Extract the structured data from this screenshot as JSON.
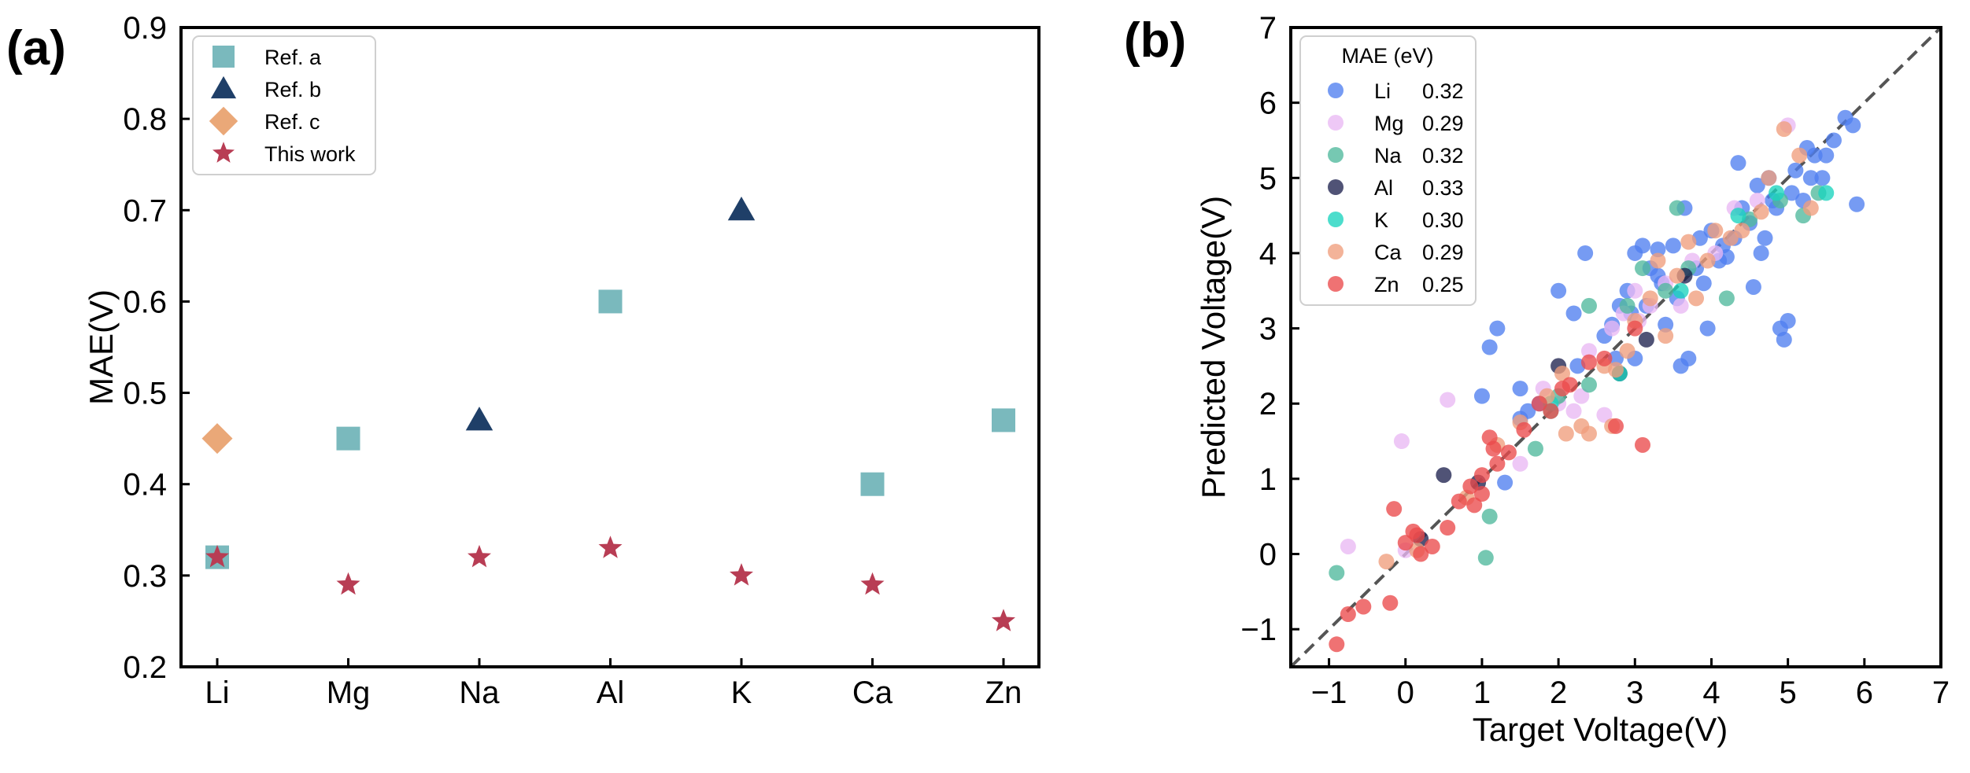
{
  "chart_data": [
    {
      "type": "scatter",
      "panel_label": "(a)",
      "categories": [
        "Li",
        "Mg",
        "Na",
        "Al",
        "K",
        "Ca",
        "Zn"
      ],
      "ylabel": "MAE(V)",
      "xlabel": "",
      "ylim": [
        0.2,
        0.9
      ],
      "yticks": [
        0.2,
        0.3,
        0.4,
        0.5,
        0.6,
        0.7,
        0.8,
        0.9
      ],
      "ytick_labels": [
        "0.2",
        "0.3",
        "0.4",
        "0.5",
        "0.6",
        "0.7",
        "0.8",
        "0.9"
      ],
      "legend_position": "top-left",
      "series": [
        {
          "name": "Ref. a",
          "marker": "square",
          "color": "#7ab9bd",
          "points": [
            {
              "category": "Li",
              "value": 0.32
            },
            {
              "category": "Mg",
              "value": 0.45
            },
            {
              "category": "Al",
              "value": 0.6
            },
            {
              "category": "Ca",
              "value": 0.4
            },
            {
              "category": "Zn",
              "value": 0.47
            }
          ]
        },
        {
          "name": "Ref. b",
          "marker": "triangle",
          "color": "#1f3f68",
          "points": [
            {
              "category": "Na",
              "value": 0.47
            },
            {
              "category": "K",
              "value": 0.7
            }
          ]
        },
        {
          "name": "Ref. c",
          "marker": "diamond",
          "color": "#eaa878",
          "points": [
            {
              "category": "Li",
              "value": 0.45
            }
          ]
        },
        {
          "name": "This work",
          "marker": "star",
          "color": "#b83d54",
          "points": [
            {
              "category": "Li",
              "value": 0.32
            },
            {
              "category": "Mg",
              "value": 0.29
            },
            {
              "category": "Na",
              "value": 0.32
            },
            {
              "category": "Al",
              "value": 0.33
            },
            {
              "category": "K",
              "value": 0.3
            },
            {
              "category": "Ca",
              "value": 0.29
            },
            {
              "category": "Zn",
              "value": 0.25
            }
          ]
        }
      ]
    },
    {
      "type": "scatter",
      "panel_label": "(b)",
      "xlabel": "Target Voltage(V)",
      "ylabel": "Predicted Voltage(V)",
      "xlim": [
        -1.5,
        7
      ],
      "ylim": [
        -1.5,
        7
      ],
      "xticks": [
        -1,
        0,
        1,
        2,
        3,
        4,
        5,
        6,
        7
      ],
      "xtick_labels": [
        "−1",
        "0",
        "1",
        "2",
        "3",
        "4",
        "5",
        "6",
        "7"
      ],
      "yticks": [
        -1,
        0,
        1,
        2,
        3,
        4,
        5,
        6,
        7
      ],
      "ytick_labels": [
        "−1",
        "0",
        "1",
        "2",
        "3",
        "4",
        "5",
        "6",
        "7"
      ],
      "reference_line": "y = x (dashed)",
      "legend_title": "MAE (eV)",
      "legend_position": "top-left",
      "series": [
        {
          "name": "Li",
          "mae": "0.32",
          "color": "#4f7ff0",
          "points": [
            [
              1.2,
              3.0
            ],
            [
              1.1,
              2.75
            ],
            [
              1.3,
              0.95
            ],
            [
              1.0,
              2.1
            ],
            [
              1.5,
              2.2
            ],
            [
              1.5,
              1.8
            ],
            [
              1.6,
              1.9
            ],
            [
              1.75,
              2.0
            ],
            [
              2.0,
              3.5
            ],
            [
              2.2,
              3.2
            ],
            [
              2.25,
              2.5
            ],
            [
              2.35,
              4.0
            ],
            [
              2.6,
              2.9
            ],
            [
              2.7,
              3.05
            ],
            [
              2.75,
              2.6
            ],
            [
              2.8,
              3.3
            ],
            [
              2.9,
              3.5
            ],
            [
              3.0,
              4.0
            ],
            [
              3.0,
              2.6
            ],
            [
              3.1,
              4.1
            ],
            [
              3.15,
              3.3
            ],
            [
              3.2,
              3.8
            ],
            [
              3.3,
              4.05
            ],
            [
              3.35,
              3.6
            ],
            [
              3.4,
              3.05
            ],
            [
              3.5,
              4.1
            ],
            [
              3.55,
              3.4
            ],
            [
              3.6,
              2.5
            ],
            [
              3.65,
              4.6
            ],
            [
              3.7,
              2.6
            ],
            [
              3.8,
              3.8
            ],
            [
              3.85,
              4.2
            ],
            [
              3.9,
              3.6
            ],
            [
              3.95,
              3.0
            ],
            [
              4.0,
              4.3
            ],
            [
              4.1,
              3.9
            ],
            [
              4.15,
              4.1
            ],
            [
              4.2,
              3.95
            ],
            [
              4.3,
              4.2
            ],
            [
              4.35,
              5.2
            ],
            [
              4.4,
              4.6
            ],
            [
              4.5,
              4.4
            ],
            [
              4.55,
              3.55
            ],
            [
              4.6,
              4.9
            ],
            [
              4.65,
              4.0
            ],
            [
              4.7,
              4.2
            ],
            [
              4.75,
              5.0
            ],
            [
              4.8,
              4.7
            ],
            [
              4.85,
              4.6
            ],
            [
              4.9,
              3.0
            ],
            [
              4.95,
              2.85
            ],
            [
              5.0,
              3.1
            ],
            [
              5.05,
              4.8
            ],
            [
              5.1,
              5.1
            ],
            [
              5.2,
              4.7
            ],
            [
              5.25,
              5.4
            ],
            [
              5.3,
              5.0
            ],
            [
              5.35,
              5.3
            ],
            [
              5.45,
              5.0
            ],
            [
              5.5,
              5.3
            ],
            [
              5.6,
              5.5
            ],
            [
              5.75,
              5.8
            ],
            [
              5.85,
              5.7
            ],
            [
              5.9,
              4.65
            ],
            [
              3.3,
              3.7
            ],
            [
              2.95,
              3.2
            ]
          ]
        },
        {
          "name": "Mg",
          "mae": "0.29",
          "color": "#e9b8f3",
          "points": [
            [
              -0.75,
              0.1
            ],
            [
              -0.05,
              1.5
            ],
            [
              0.55,
              2.05
            ],
            [
              1.5,
              1.2
            ],
            [
              2.0,
              2.0
            ],
            [
              2.2,
              1.9
            ],
            [
              2.4,
              2.7
            ],
            [
              2.6,
              1.85
            ],
            [
              2.7,
              3.0
            ],
            [
              2.85,
              3.2
            ],
            [
              3.0,
              3.5
            ],
            [
              3.05,
              3.1
            ],
            [
              3.2,
              3.3
            ],
            [
              3.4,
              3.6
            ],
            [
              3.6,
              3.3
            ],
            [
              3.75,
              3.9
            ],
            [
              4.05,
              4.0
            ],
            [
              4.3,
              4.6
            ],
            [
              4.6,
              4.7
            ],
            [
              5.0,
              5.7
            ],
            [
              0.0,
              0.05
            ],
            [
              1.8,
              2.2
            ],
            [
              2.3,
              2.1
            ]
          ]
        },
        {
          "name": "Na",
          "mae": "0.32",
          "color": "#4fb89c",
          "points": [
            [
              -0.9,
              -0.25
            ],
            [
              1.05,
              -0.05
            ],
            [
              1.1,
              0.5
            ],
            [
              1.7,
              1.4
            ],
            [
              1.9,
              1.9
            ],
            [
              2.4,
              2.25
            ],
            [
              2.4,
              3.3
            ],
            [
              2.9,
              3.3
            ],
            [
              3.1,
              3.8
            ],
            [
              3.4,
              3.5
            ],
            [
              3.55,
              4.6
            ],
            [
              3.7,
              3.8
            ],
            [
              4.2,
              3.4
            ],
            [
              4.5,
              4.45
            ],
            [
              4.9,
              4.7
            ],
            [
              5.2,
              4.5
            ],
            [
              5.4,
              4.8
            ],
            [
              2.0,
              2.1
            ]
          ]
        },
        {
          "name": "Al",
          "mae": "0.33",
          "color": "#1f2350",
          "points": [
            [
              0.5,
              1.05
            ],
            [
              0.95,
              0.95
            ],
            [
              2.0,
              2.5
            ],
            [
              2.8,
              2.4
            ],
            [
              3.15,
              2.85
            ],
            [
              3.65,
              3.7
            ],
            [
              0.2,
              0.2
            ]
          ]
        },
        {
          "name": "K",
          "mae": "0.30",
          "color": "#19d3be",
          "points": [
            [
              2.8,
              2.4
            ],
            [
              3.6,
              3.5
            ],
            [
              4.35,
              4.5
            ],
            [
              4.85,
              4.8
            ],
            [
              5.5,
              4.8
            ],
            [
              1.9,
              2.0
            ]
          ]
        },
        {
          "name": "Ca",
          "mae": "0.29",
          "color": "#f09d7c",
          "points": [
            [
              -0.25,
              -0.1
            ],
            [
              0.15,
              0.05
            ],
            [
              0.8,
              0.75
            ],
            [
              1.2,
              1.45
            ],
            [
              1.5,
              1.75
            ],
            [
              1.85,
              2.1
            ],
            [
              2.05,
              2.4
            ],
            [
              2.1,
              1.6
            ],
            [
              2.3,
              1.7
            ],
            [
              2.4,
              1.6
            ],
            [
              2.6,
              2.5
            ],
            [
              2.7,
              1.7
            ],
            [
              2.75,
              2.45
            ],
            [
              2.9,
              2.7
            ],
            [
              3.0,
              3.1
            ],
            [
              3.2,
              3.4
            ],
            [
              3.3,
              3.9
            ],
            [
              3.4,
              2.9
            ],
            [
              3.55,
              3.7
            ],
            [
              3.7,
              4.15
            ],
            [
              3.8,
              3.4
            ],
            [
              3.95,
              3.9
            ],
            [
              4.05,
              4.3
            ],
            [
              4.25,
              4.2
            ],
            [
              4.4,
              4.3
            ],
            [
              4.75,
              5.0
            ],
            [
              4.95,
              5.65
            ],
            [
              5.15,
              5.3
            ],
            [
              5.3,
              4.6
            ],
            [
              4.65,
              4.55
            ]
          ]
        },
        {
          "name": "Zn",
          "mae": "0.25",
          "color": "#ea4a4c",
          "points": [
            [
              -0.9,
              -1.2
            ],
            [
              -0.75,
              -0.8
            ],
            [
              -0.55,
              -0.7
            ],
            [
              -0.2,
              -0.65
            ],
            [
              -0.15,
              0.6
            ],
            [
              0.0,
              0.15
            ],
            [
              0.1,
              0.3
            ],
            [
              0.2,
              0.0
            ],
            [
              0.35,
              0.1
            ],
            [
              0.55,
              0.35
            ],
            [
              0.7,
              0.7
            ],
            [
              0.85,
              0.9
            ],
            [
              0.9,
              0.65
            ],
            [
              1.0,
              1.05
            ],
            [
              1.1,
              1.55
            ],
            [
              1.15,
              1.4
            ],
            [
              1.2,
              1.2
            ],
            [
              1.35,
              1.35
            ],
            [
              1.55,
              1.65
            ],
            [
              1.75,
              2.0
            ],
            [
              1.9,
              1.9
            ],
            [
              2.05,
              2.2
            ],
            [
              2.15,
              2.25
            ],
            [
              2.4,
              2.55
            ],
            [
              2.6,
              2.6
            ],
            [
              2.75,
              1.7
            ],
            [
              3.1,
              1.45
            ],
            [
              3.0,
              3.0
            ],
            [
              1.0,
              0.8
            ],
            [
              0.15,
              0.25
            ]
          ]
        }
      ]
    }
  ]
}
